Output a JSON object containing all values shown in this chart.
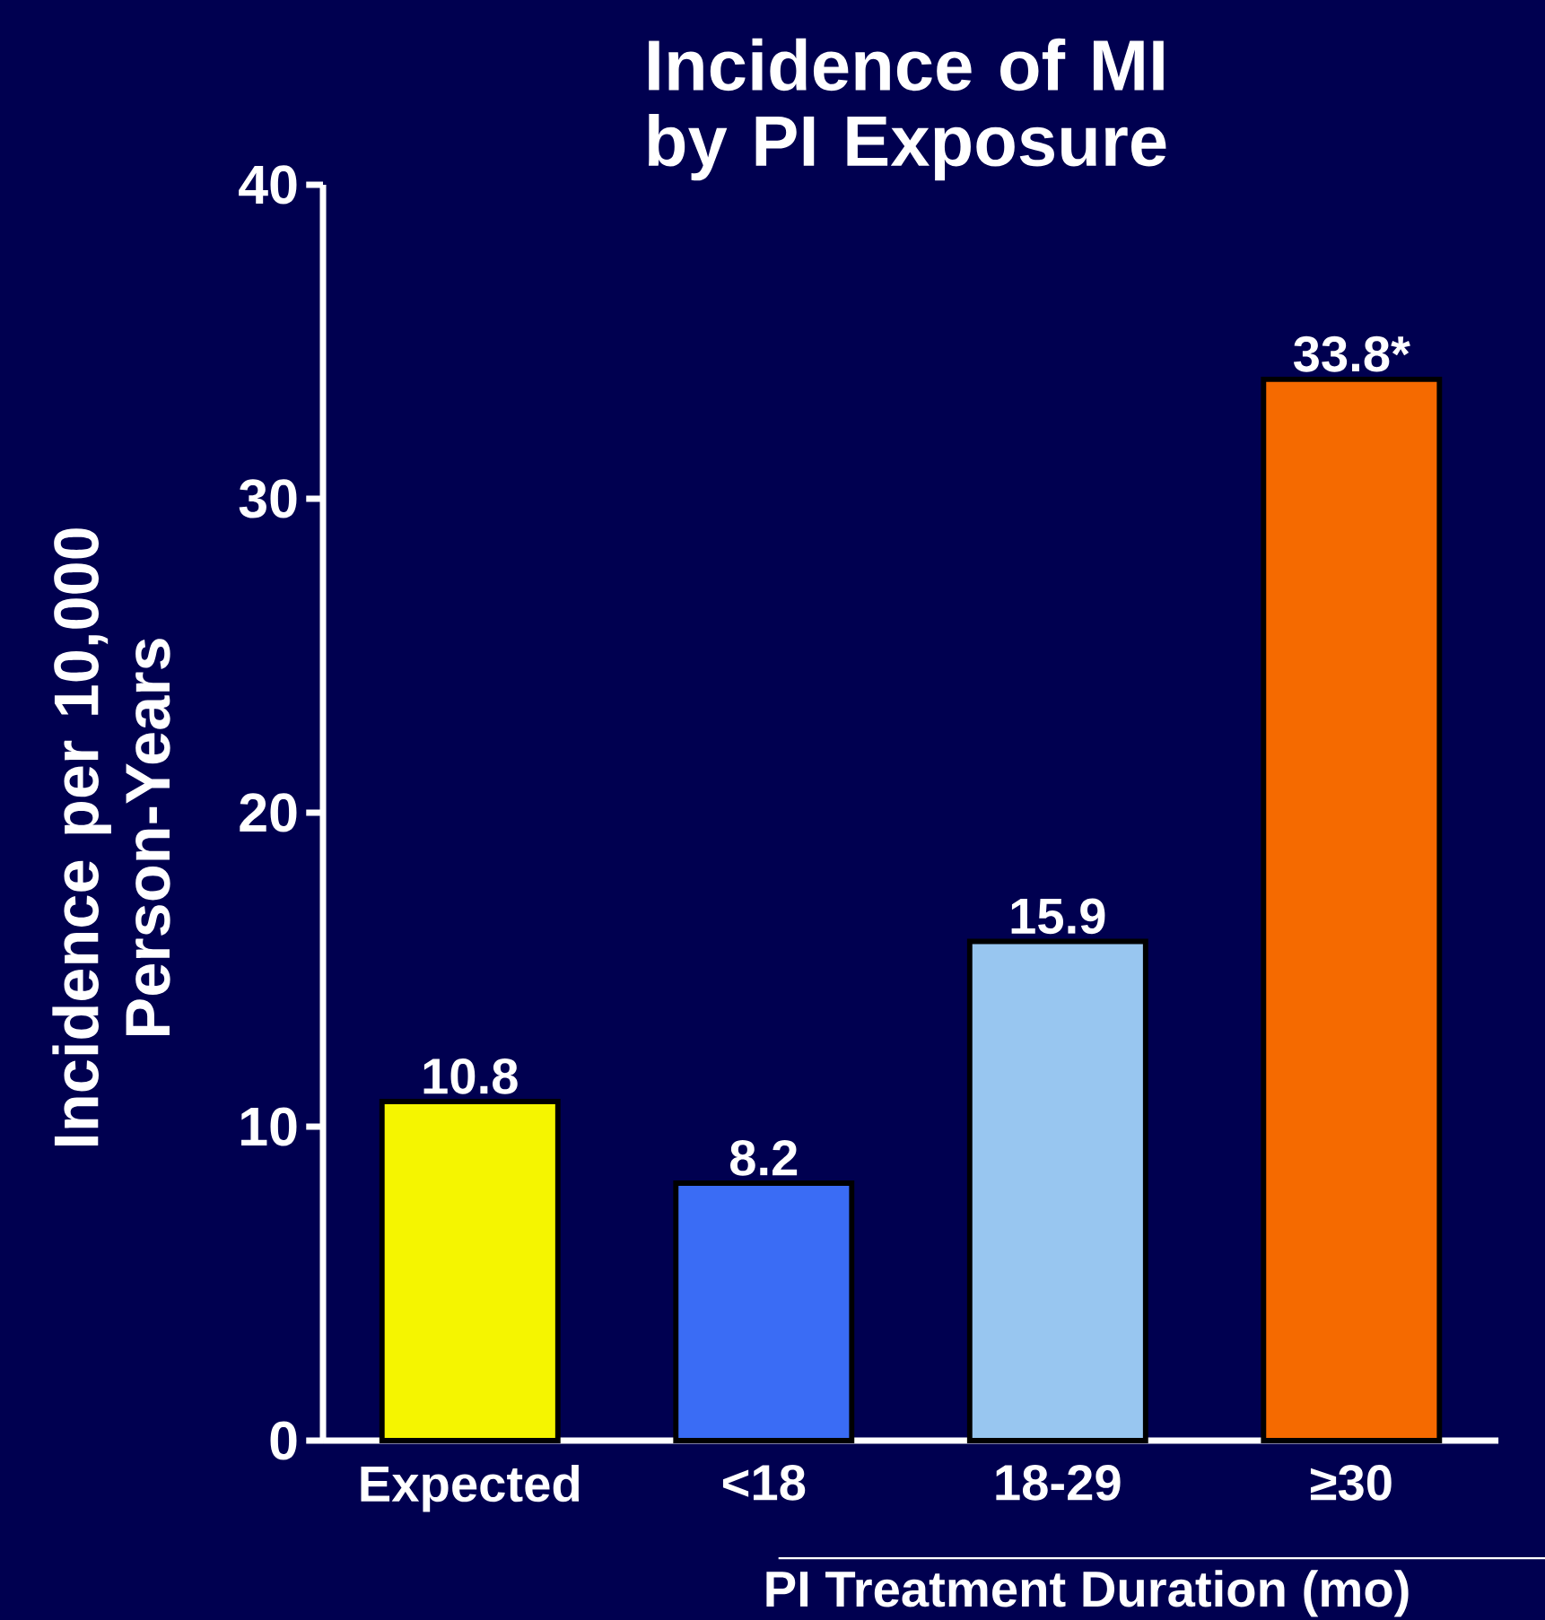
{
  "chart_data": {
    "type": "bar",
    "title": "Incidence of MI by PI Exposure",
    "ylabel": "Incidence per 10,000 Person-Years",
    "xlabel": "PI Treatment Duration (mo)",
    "categories": [
      "Expected",
      "<18",
      "18-29",
      "≥30"
    ],
    "values": [
      10.8,
      8.2,
      15.9,
      33.8
    ],
    "colors": [
      "#f5f500",
      "#3a6cf5",
      "#98c6f0",
      "#f56a00"
    ],
    "value_labels": [
      "10.8",
      "8.2",
      "15.9",
      "33.8*"
    ],
    "ylim": [
      0,
      40
    ],
    "yticks": [
      0,
      10,
      20,
      30,
      40
    ],
    "grid": false
  }
}
